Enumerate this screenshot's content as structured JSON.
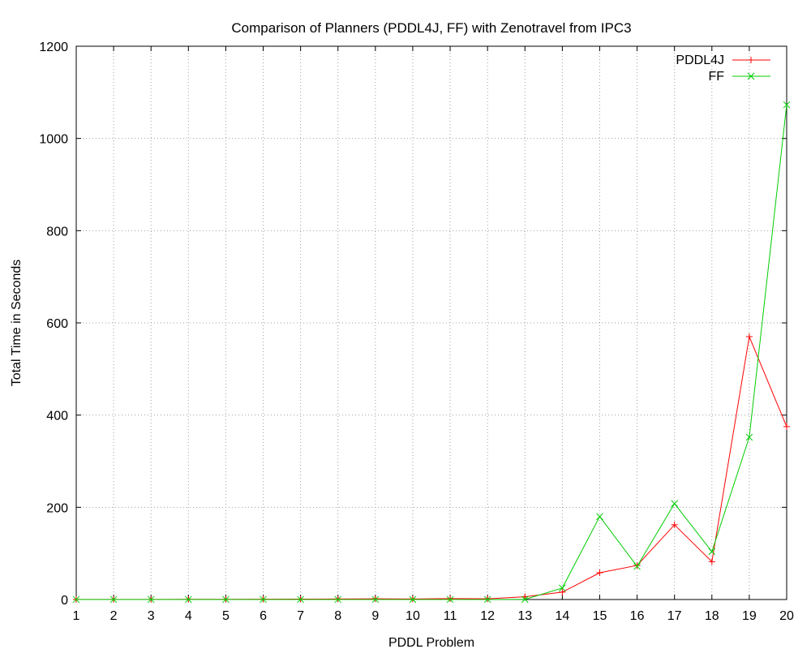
{
  "chart_data": {
    "type": "line",
    "title": "Comparison of Planners (PDDL4J, FF) with Zenotravel from IPC3",
    "xlabel": "PDDL Problem",
    "ylabel": "Total Time in Seconds",
    "xlim": [
      1,
      20
    ],
    "ylim": [
      0,
      1200
    ],
    "xticks": [
      1,
      2,
      3,
      4,
      5,
      6,
      7,
      8,
      9,
      10,
      11,
      12,
      13,
      14,
      15,
      16,
      17,
      18,
      19,
      20
    ],
    "yticks": [
      0,
      200,
      400,
      600,
      800,
      1000,
      1200
    ],
    "grid": true,
    "legend_position": "top-right",
    "x": [
      1,
      2,
      3,
      4,
      5,
      6,
      7,
      8,
      9,
      10,
      11,
      12,
      13,
      14,
      15,
      16,
      17,
      18,
      19,
      20
    ],
    "series": [
      {
        "name": "PDDL4J",
        "color": "#ff0000",
        "marker": "plus",
        "values": [
          0.3,
          0.3,
          0.3,
          0.4,
          0.5,
          0.6,
          0.8,
          1.0,
          1.5,
          1.2,
          2.0,
          1.5,
          6,
          16,
          58,
          74,
          162,
          82,
          570,
          375
        ]
      },
      {
        "name": "FF",
        "color": "#00cc00",
        "marker": "cross",
        "values": [
          0.1,
          0.1,
          0.1,
          0.1,
          0.1,
          0.1,
          0.1,
          0.1,
          0.1,
          0.1,
          0.1,
          0.1,
          0.2,
          25,
          180,
          72,
          208,
          104,
          352,
          1073
        ]
      }
    ]
  }
}
